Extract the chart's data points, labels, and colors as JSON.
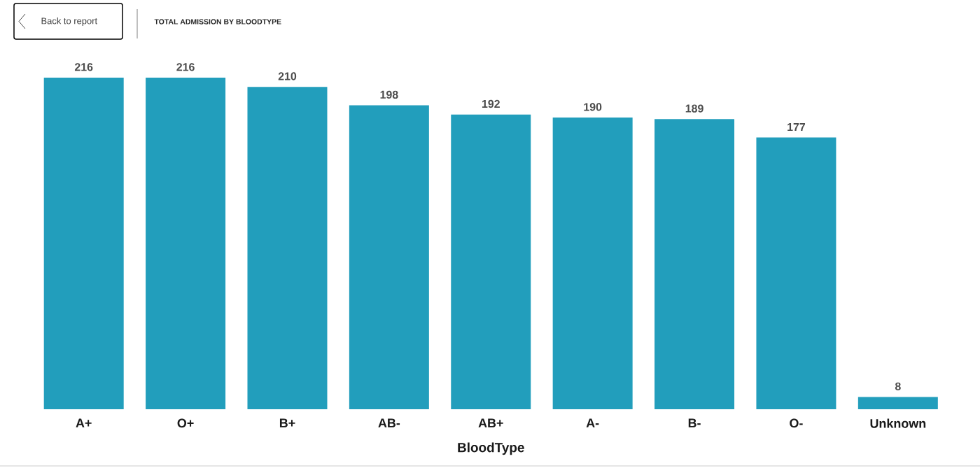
{
  "chart_data": {
    "type": "bar",
    "title": "TOTAL ADMISSION BY BLOODTYPE",
    "xlabel": "BloodType",
    "categories": [
      "A+",
      "O+",
      "B+",
      "AB-",
      "AB+",
      "A-",
      "B-",
      "O-",
      "Unknown"
    ],
    "values": [
      216,
      216,
      210,
      198,
      192,
      190,
      189,
      177,
      8
    ],
    "color": "#229ebc",
    "data_labels": true,
    "annotations": [
      "Back to report"
    ]
  }
}
